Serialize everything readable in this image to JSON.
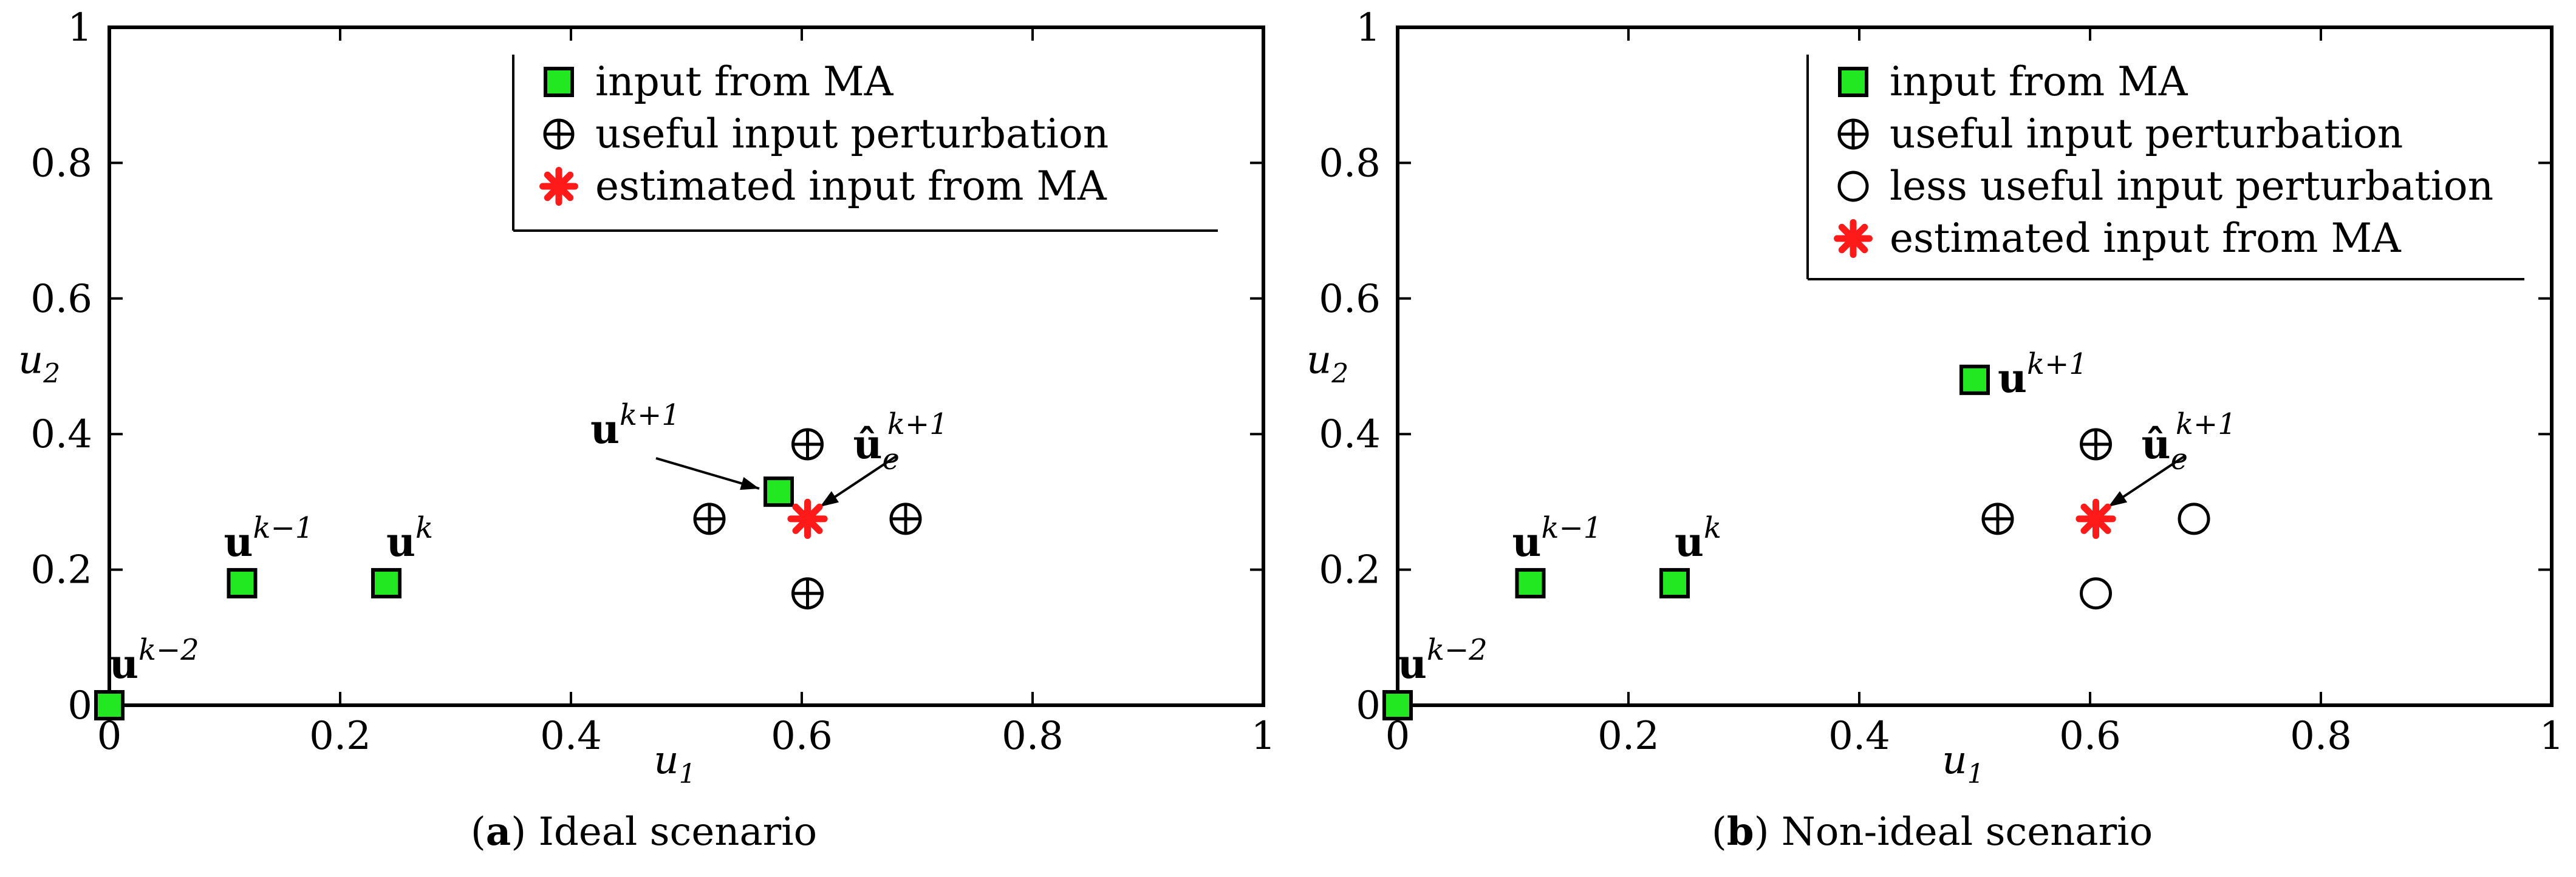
{
  "chart_data": [
    {
      "type": "scatter",
      "caption_letter": "a",
      "caption": "Ideal scenario",
      "xlabel": "u",
      "xlabel_sub": "1",
      "ylabel": "u",
      "ylabel_sub": "2",
      "xlim": [
        0,
        1
      ],
      "ylim": [
        0,
        1
      ],
      "xticks": [
        "0",
        "0.2",
        "0.4",
        "0.6",
        "0.8",
        "1"
      ],
      "yticks": [
        "0",
        "0.2",
        "0.4",
        "0.6",
        "0.8",
        "1"
      ],
      "legend_position": "top-right",
      "legend": [
        {
          "marker": "green-square",
          "label": "input from MA"
        },
        {
          "marker": "circle-plus",
          "label": "useful input perturbation"
        },
        {
          "marker": "red-asterisk",
          "label": "estimated input from MA"
        }
      ],
      "series": [
        {
          "name": "input from MA",
          "marker": "green-square",
          "points": [
            {
              "x": 0.0,
              "y": 0.0,
              "label": "u",
              "sup": "k−2"
            },
            {
              "x": 0.115,
              "y": 0.18,
              "label": "u",
              "sup": "k−1"
            },
            {
              "x": 0.24,
              "y": 0.18,
              "label": "u",
              "sup": "k"
            },
            {
              "x": 0.58,
              "y": 0.315,
              "label": "u",
              "sup": "k+1"
            }
          ]
        },
        {
          "name": "useful input perturbation",
          "marker": "circle-plus",
          "points": [
            {
              "x": 0.605,
              "y": 0.385
            },
            {
              "x": 0.52,
              "y": 0.275
            },
            {
              "x": 0.69,
              "y": 0.275
            },
            {
              "x": 0.605,
              "y": 0.165
            }
          ]
        },
        {
          "name": "estimated input from MA",
          "marker": "red-asterisk",
          "points": [
            {
              "x": 0.605,
              "y": 0.275,
              "label": "û",
              "sub": "e",
              "sup": "k+1"
            }
          ]
        }
      ]
    },
    {
      "type": "scatter",
      "caption_letter": "b",
      "caption": "Non-ideal scenario",
      "xlabel": "u",
      "xlabel_sub": "1",
      "ylabel": "u",
      "ylabel_sub": "2",
      "xlim": [
        0,
        1
      ],
      "ylim": [
        0,
        1
      ],
      "xticks": [
        "0",
        "0.2",
        "0.4",
        "0.6",
        "0.8",
        "1"
      ],
      "yticks": [
        "0",
        "0.2",
        "0.4",
        "0.6",
        "0.8",
        "1"
      ],
      "legend_position": "top-right",
      "legend": [
        {
          "marker": "green-square",
          "label": "input from MA"
        },
        {
          "marker": "circle-plus",
          "label": "useful input perturbation"
        },
        {
          "marker": "open-circle",
          "label": "less useful input perturbation"
        },
        {
          "marker": "red-asterisk",
          "label": "estimated input from MA"
        }
      ],
      "series": [
        {
          "name": "input from MA",
          "marker": "green-square",
          "points": [
            {
              "x": 0.0,
              "y": 0.0,
              "label": "u",
              "sup": "k−2"
            },
            {
              "x": 0.115,
              "y": 0.18,
              "label": "u",
              "sup": "k−1"
            },
            {
              "x": 0.24,
              "y": 0.18,
              "label": "u",
              "sup": "k"
            },
            {
              "x": 0.5,
              "y": 0.48,
              "label": "u",
              "sup": "k+1"
            }
          ]
        },
        {
          "name": "useful input perturbation",
          "marker": "circle-plus",
          "points": [
            {
              "x": 0.605,
              "y": 0.385
            },
            {
              "x": 0.52,
              "y": 0.275
            }
          ]
        },
        {
          "name": "less useful input perturbation",
          "marker": "open-circle",
          "points": [
            {
              "x": 0.69,
              "y": 0.275
            },
            {
              "x": 0.605,
              "y": 0.165
            }
          ]
        },
        {
          "name": "estimated input from MA",
          "marker": "red-asterisk",
          "points": [
            {
              "x": 0.605,
              "y": 0.275,
              "label": "û",
              "sub": "e",
              "sup": "k+1"
            }
          ]
        }
      ]
    }
  ],
  "colors": {
    "square_fill": "#22e822",
    "asterisk": "#ff1a1a",
    "ink": "#000000"
  }
}
